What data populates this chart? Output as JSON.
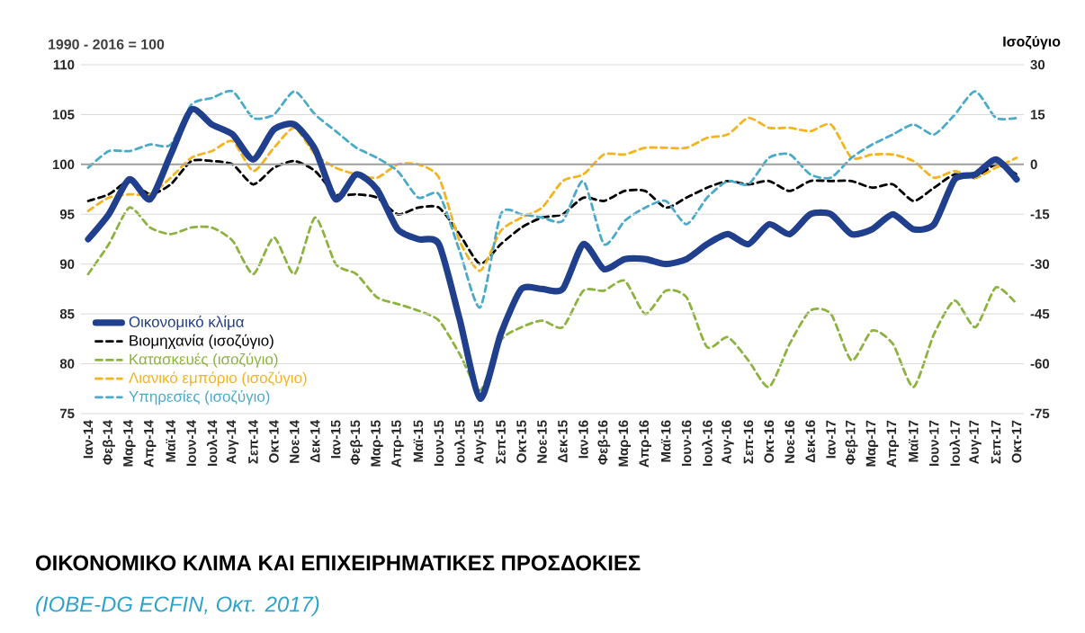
{
  "chart_data": {
    "type": "line",
    "title": "ΟΙΚΟΝΟΜΙΚΟ ΚΛΙΜΑ ΚΑΙ ΕΠΙΧΕΙΡΗΜΑΤΙΚΕΣ ΠΡΟΣΔΟΚΙΕΣ",
    "annotations": [
      "(IOBE-DG ECFIN, Οκτ. 2017)"
    ],
    "ylabel": "1990 - 2016 = 100",
    "y2label": "Ισοζύγιο",
    "categories": [
      "Ιαν-14",
      "Φεβ-14",
      "Μαρ-14",
      "Απρ-14",
      "Μαϊ-14",
      "Ιουν-14",
      "Ιουλ-14",
      "Αυγ-14",
      "Σεπ-14",
      "Οκτ-14",
      "Νοε-14",
      "Δεκ-14",
      "Ιαν-15",
      "Φεβ-15",
      "Μαρ-15",
      "Απρ-15",
      "Μαϊ-15",
      "Ιουν-15",
      "Ιουλ-15",
      "Αυγ-15",
      "Σεπ-15",
      "Οκτ-15",
      "Νοε-15",
      "Δεκ-15",
      "Ιαν-16",
      "Φεβ-16",
      "Μαρ-16",
      "Απρ-16",
      "Μαϊ-16",
      "Ιουν-16",
      "Ιουλ-16",
      "Αυγ-16",
      "Σεπ-16",
      "Οκτ-16",
      "Νοε-16",
      "Δεκ-16",
      "Ιαν-17",
      "Φεβ-17",
      "Μαρ-17",
      "Απρ-17",
      "Μαϊ-17",
      "Ιουν-17",
      "Ιουλ-17",
      "Αυγ-17",
      "Σεπ-17",
      "Οκτ-17"
    ],
    "series": [
      {
        "name": "Οικονομικό κλίμα",
        "color": "#203f8c",
        "line_style": "solid",
        "values": [
          92.5,
          95,
          98.5,
          96.5,
          101,
          105.5,
          104,
          103,
          100.5,
          103.5,
          104,
          101.5,
          96.5,
          99,
          97.5,
          93.5,
          92.5,
          92,
          84.5,
          76.5,
          83,
          87.5,
          87.5,
          87.5,
          92,
          89.5,
          90.5,
          90.5,
          90,
          90.5,
          92,
          93,
          92,
          94,
          93,
          95,
          95,
          93,
          93.5,
          95,
          93.5,
          94,
          98.5,
          99,
          100.5,
          98.5
        ]
      },
      {
        "name": "Βιομηχανία (ισοζύγιο)",
        "color": "#000000",
        "line_style": "dashed",
        "axis": "y2",
        "values": [
          -11,
          -9,
          -5,
          -9,
          -6,
          1,
          1,
          0,
          -6,
          -1,
          1,
          -2,
          -9,
          -9,
          -10,
          -15,
          -13,
          -13,
          -21,
          -30,
          -24,
          -19,
          -16,
          -15,
          -10,
          -11,
          -8,
          -8,
          -13,
          -10,
          -7,
          -5,
          -6,
          -5,
          -8,
          -5,
          -5,
          -5,
          -7,
          -6,
          -11,
          -7,
          -3,
          -4,
          0,
          -3
        ]
      },
      {
        "name": "Κατασκευές (ισοζύγιο)",
        "color": "#8db33f",
        "line_style": "dashed",
        "axis": "y2",
        "values": [
          -33,
          -24,
          -13,
          -19,
          -21,
          -19,
          -19,
          -23,
          -33,
          -22,
          -33,
          -16,
          -30,
          -33,
          -40,
          -42,
          -44,
          -47,
          -57,
          -68,
          -53,
          -49,
          -47,
          -49,
          -38,
          -38,
          -35,
          -45,
          -38,
          -40,
          -55,
          -52,
          -59,
          -67,
          -54,
          -44,
          -45,
          -59,
          -50,
          -54,
          -67,
          -51,
          -41,
          -49,
          -37,
          -42
        ]
      },
      {
        "name": "Λιανικό εμπόριο (ισοζύγιο)",
        "color": "#f4b41f",
        "line_style": "dashed",
        "axis": "y2",
        "values": [
          -14,
          -10,
          -9,
          -9,
          -4,
          2,
          4,
          7,
          -2,
          5,
          11,
          3,
          -1,
          -3,
          -4,
          0,
          0,
          -4,
          -23,
          -32,
          -20,
          -16,
          -13,
          -5,
          -3,
          3,
          3,
          5,
          5,
          5,
          8,
          9,
          14,
          11,
          11,
          10,
          12,
          2,
          3,
          3,
          1,
          -4,
          -2,
          -4,
          -1,
          2
        ]
      },
      {
        "name": "Υπηρεσίες (ισοζύγιο)",
        "color": "#4aaac8",
        "line_style": "dashed",
        "axis": "y2",
        "values": [
          -1,
          4,
          4,
          6,
          6,
          18,
          20,
          22,
          14,
          15,
          22,
          15,
          10,
          5,
          2,
          -2,
          -10,
          -9,
          -26,
          -43,
          -15,
          -15,
          -16,
          -17,
          -5,
          -24,
          -17,
          -13,
          -11,
          -18,
          -10,
          -5,
          -6,
          2,
          3,
          -3,
          -4,
          2,
          6,
          9,
          12,
          9,
          15,
          22,
          14,
          14
        ]
      }
    ],
    "ylim": [
      75,
      110
    ],
    "yticks": [
      75,
      80,
      85,
      90,
      95,
      100,
      105,
      110
    ],
    "y2lim": [
      -75,
      30
    ],
    "y2ticks": [
      -75,
      -60,
      -45,
      -30,
      -15,
      0,
      15,
      30
    ],
    "ref_lines": [
      {
        "axis": "y",
        "value": 100,
        "color": "#a0a0a0"
      }
    ],
    "grid": "y",
    "legend": "bottom left"
  }
}
